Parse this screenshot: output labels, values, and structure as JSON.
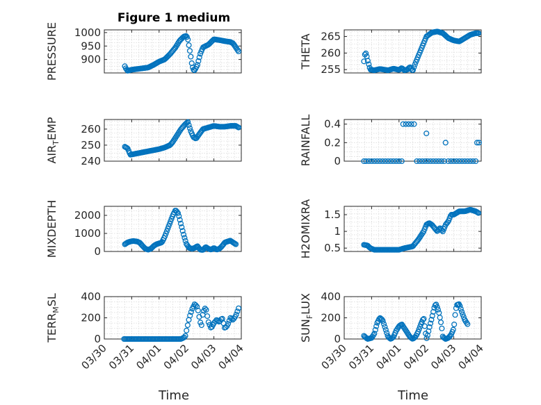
{
  "window": {
    "title": "Figure 1 medium"
  },
  "theme": {
    "marker_color": "#0072BD",
    "axis_color": "#262626",
    "grid_color": "#d9d9d9"
  },
  "x_axis": {
    "label": "Time",
    "ticks": [
      "03/30",
      "03/31",
      "04/01",
      "04/02",
      "04/03",
      "04/04"
    ],
    "tick_values": [
      0,
      1,
      2,
      3,
      4,
      5
    ],
    "unit": "days from 03/30"
  },
  "chart_data": [
    {
      "type": "scatter",
      "name": "pressure",
      "title": "Figure 1 medium",
      "ylabel": "PRESSURE",
      "ylim": [
        850,
        1010
      ],
      "yticks": [
        900,
        950,
        1000
      ],
      "yticklabels": [
        "900",
        "950",
        "1000"
      ],
      "grid": true,
      "anchors": [
        [
          0.75,
          875
        ],
        [
          0.78,
          868
        ],
        [
          0.85,
          858
        ],
        [
          1.0,
          862
        ],
        [
          1.3,
          866
        ],
        [
          1.6,
          870
        ],
        [
          1.8,
          880
        ],
        [
          2.0,
          892
        ],
        [
          2.2,
          900
        ],
        [
          2.4,
          920
        ],
        [
          2.6,
          945
        ],
        [
          2.75,
          970
        ],
        [
          2.9,
          985
        ],
        [
          3.0,
          988
        ],
        [
          3.05,
          975
        ],
        [
          3.1,
          945
        ],
        [
          3.15,
          915
        ],
        [
          3.2,
          880
        ],
        [
          3.25,
          862
        ],
        [
          3.3,
          860
        ],
        [
          3.4,
          880
        ],
        [
          3.5,
          920
        ],
        [
          3.6,
          945
        ],
        [
          3.8,
          955
        ],
        [
          4.0,
          975
        ],
        [
          4.2,
          972
        ],
        [
          4.4,
          968
        ],
        [
          4.6,
          965
        ],
        [
          4.7,
          960
        ],
        [
          4.8,
          945
        ],
        [
          4.9,
          930
        ]
      ],
      "n_points": 120
    },
    {
      "type": "scatter",
      "name": "theta",
      "ylabel": "THETA",
      "ylim": [
        254,
        267
      ],
      "yticks": [
        255,
        260,
        265
      ],
      "yticklabels": [
        "255",
        "260",
        "265"
      ],
      "grid": true,
      "anchors": [
        [
          0.72,
          257.5
        ],
        [
          0.75,
          259.5
        ],
        [
          0.8,
          260
        ],
        [
          0.85,
          258
        ],
        [
          0.95,
          255
        ],
        [
          1.1,
          254.8
        ],
        [
          1.3,
          255.2
        ],
        [
          1.6,
          254.8
        ],
        [
          1.8,
          255.3
        ],
        [
          2.0,
          254.9
        ],
        [
          2.1,
          255.5
        ],
        [
          2.2,
          254.8
        ],
        [
          2.3,
          255
        ],
        [
          2.4,
          255.8
        ],
        [
          2.5,
          254.6
        ],
        [
          2.6,
          257
        ],
        [
          2.7,
          259
        ],
        [
          2.85,
          262
        ],
        [
          3.0,
          265
        ],
        [
          3.2,
          266.2
        ],
        [
          3.4,
          266.5
        ],
        [
          3.6,
          266
        ],
        [
          3.8,
          264.5
        ],
        [
          4.0,
          263.8
        ],
        [
          4.2,
          263.5
        ],
        [
          4.4,
          264.5
        ],
        [
          4.6,
          265.5
        ],
        [
          4.8,
          266
        ],
        [
          4.9,
          266
        ]
      ],
      "n_points": 120
    },
    {
      "type": "scatter",
      "name": "air-temp",
      "ylabel": "AIR_TEMP",
      "ylim": [
        240,
        266
      ],
      "yticks": [
        240,
        250,
        260
      ],
      "yticklabels": [
        "240",
        "250",
        "260"
      ],
      "grid": true,
      "anchors": [
        [
          0.75,
          249
        ],
        [
          0.85,
          248
        ],
        [
          0.95,
          244
        ],
        [
          1.1,
          244.5
        ],
        [
          1.4,
          245.5
        ],
        [
          1.7,
          246.5
        ],
        [
          2.0,
          247.5
        ],
        [
          2.2,
          248.5
        ],
        [
          2.4,
          250
        ],
        [
          2.5,
          252
        ],
        [
          2.65,
          256
        ],
        [
          2.8,
          260
        ],
        [
          2.95,
          263
        ],
        [
          3.05,
          264.5
        ],
        [
          3.15,
          259
        ],
        [
          3.25,
          255
        ],
        [
          3.35,
          254
        ],
        [
          3.45,
          256.5
        ],
        [
          3.6,
          260
        ],
        [
          3.8,
          261
        ],
        [
          4.0,
          262
        ],
        [
          4.2,
          261.5
        ],
        [
          4.4,
          261.5
        ],
        [
          4.6,
          262
        ],
        [
          4.8,
          262
        ],
        [
          4.9,
          261
        ]
      ],
      "n_points": 120
    },
    {
      "type": "scatter",
      "name": "rainfall",
      "ylabel": "RAINFALL",
      "ylim": [
        0,
        0.45
      ],
      "yticks": [
        0,
        0.2,
        0.4
      ],
      "yticklabels": [
        "0",
        "0.2",
        "0.4"
      ],
      "grid": true,
      "points": [
        [
          0.72,
          0
        ],
        [
          0.8,
          0
        ],
        [
          0.9,
          0
        ],
        [
          1.0,
          0
        ],
        [
          1.1,
          0
        ],
        [
          1.2,
          0
        ],
        [
          1.3,
          0
        ],
        [
          1.4,
          0
        ],
        [
          1.5,
          0
        ],
        [
          1.6,
          0
        ],
        [
          1.7,
          0
        ],
        [
          1.8,
          0
        ],
        [
          1.9,
          0
        ],
        [
          2.0,
          0
        ],
        [
          2.1,
          0
        ],
        [
          2.15,
          0.4
        ],
        [
          2.25,
          0.4
        ],
        [
          2.35,
          0.4
        ],
        [
          2.45,
          0.4
        ],
        [
          2.55,
          0.4
        ],
        [
          2.65,
          0
        ],
        [
          2.75,
          0
        ],
        [
          2.85,
          0
        ],
        [
          2.95,
          0
        ],
        [
          3.0,
          0.3
        ],
        [
          3.05,
          0
        ],
        [
          3.15,
          0
        ],
        [
          3.25,
          0
        ],
        [
          3.35,
          0
        ],
        [
          3.45,
          0
        ],
        [
          3.55,
          0
        ],
        [
          3.65,
          0
        ],
        [
          3.7,
          0.2
        ],
        [
          3.8,
          0
        ],
        [
          3.9,
          0
        ],
        [
          4.0,
          0
        ],
        [
          4.1,
          0
        ],
        [
          4.2,
          0
        ],
        [
          4.3,
          0
        ],
        [
          4.4,
          0
        ],
        [
          4.5,
          0
        ],
        [
          4.6,
          0
        ],
        [
          4.7,
          0
        ],
        [
          4.8,
          0
        ],
        [
          4.85,
          0.2
        ],
        [
          4.92,
          0.2
        ]
      ]
    },
    {
      "type": "scatter",
      "name": "mixdepth",
      "ylabel": "MIXDEPTH",
      "ylim": [
        0,
        2500
      ],
      "yticks": [
        0,
        1000,
        2000
      ],
      "yticklabels": [
        "0",
        "1000",
        "2000"
      ],
      "grid": true,
      "anchors": [
        [
          0.75,
          400
        ],
        [
          0.85,
          500
        ],
        [
          0.95,
          550
        ],
        [
          1.05,
          580
        ],
        [
          1.2,
          550
        ],
        [
          1.3,
          480
        ],
        [
          1.4,
          300
        ],
        [
          1.5,
          150
        ],
        [
          1.6,
          100
        ],
        [
          1.7,
          150
        ],
        [
          1.8,
          300
        ],
        [
          1.9,
          400
        ],
        [
          2.0,
          450
        ],
        [
          2.1,
          500
        ],
        [
          2.2,
          800
        ],
        [
          2.3,
          1200
        ],
        [
          2.4,
          1600
        ],
        [
          2.5,
          2000
        ],
        [
          2.6,
          2300
        ],
        [
          2.7,
          2100
        ],
        [
          2.8,
          1500
        ],
        [
          2.9,
          900
        ],
        [
          3.0,
          400
        ],
        [
          3.1,
          200
        ],
        [
          3.2,
          150
        ],
        [
          3.3,
          200
        ],
        [
          3.4,
          300
        ],
        [
          3.5,
          100
        ],
        [
          3.6,
          80
        ],
        [
          3.7,
          250
        ],
        [
          3.8,
          150
        ],
        [
          3.9,
          100
        ],
        [
          4.0,
          200
        ],
        [
          4.1,
          100
        ],
        [
          4.2,
          150
        ],
        [
          4.3,
          300
        ],
        [
          4.4,
          500
        ],
        [
          4.6,
          600
        ],
        [
          4.7,
          500
        ],
        [
          4.8,
          400
        ]
      ],
      "n_points": 120
    },
    {
      "type": "scatter",
      "name": "h2omixra",
      "ylabel": "H2OMIXRA",
      "ylim": [
        0.4,
        1.75
      ],
      "yticks": [
        0.5,
        1,
        1.5
      ],
      "yticklabels": [
        "0.5",
        "1",
        "1.5"
      ],
      "grid": true,
      "anchors": [
        [
          0.72,
          0.6
        ],
        [
          0.85,
          0.58
        ],
        [
          0.95,
          0.5
        ],
        [
          1.1,
          0.45
        ],
        [
          1.5,
          0.45
        ],
        [
          2.0,
          0.45
        ],
        [
          2.2,
          0.5
        ],
        [
          2.5,
          0.55
        ],
        [
          2.7,
          0.75
        ],
        [
          2.9,
          1.0
        ],
        [
          3.0,
          1.2
        ],
        [
          3.1,
          1.25
        ],
        [
          3.2,
          1.2
        ],
        [
          3.3,
          1.1
        ],
        [
          3.4,
          1.0
        ],
        [
          3.5,
          1.1
        ],
        [
          3.6,
          1.0
        ],
        [
          3.7,
          1.2
        ],
        [
          3.8,
          1.3
        ],
        [
          3.9,
          1.5
        ],
        [
          4.0,
          1.5
        ],
        [
          4.2,
          1.6
        ],
        [
          4.4,
          1.6
        ],
        [
          4.6,
          1.65
        ],
        [
          4.8,
          1.6
        ],
        [
          4.9,
          1.55
        ]
      ],
      "n_points": 120
    },
    {
      "type": "scatter",
      "name": "terr-msl",
      "ylabel": "TERR_MSL",
      "ylim": [
        0,
        400
      ],
      "yticks": [
        0,
        200,
        400
      ],
      "yticklabels": [
        "0",
        "200",
        "400"
      ],
      "grid": true,
      "anchors": [
        [
          0.72,
          0
        ],
        [
          1.0,
          0
        ],
        [
          1.5,
          0
        ],
        [
          2.0,
          0
        ],
        [
          2.5,
          0
        ],
        [
          2.8,
          0
        ],
        [
          2.95,
          20
        ],
        [
          3.0,
          80
        ],
        [
          3.1,
          200
        ],
        [
          3.2,
          280
        ],
        [
          3.3,
          330
        ],
        [
          3.4,
          300
        ],
        [
          3.5,
          160
        ],
        [
          3.55,
          130
        ],
        [
          3.6,
          250
        ],
        [
          3.7,
          300
        ],
        [
          3.8,
          160
        ],
        [
          3.9,
          100
        ],
        [
          4.0,
          150
        ],
        [
          4.1,
          180
        ],
        [
          4.2,
          160
        ],
        [
          4.3,
          200
        ],
        [
          4.4,
          100
        ],
        [
          4.5,
          130
        ],
        [
          4.6,
          200
        ],
        [
          4.7,
          180
        ],
        [
          4.8,
          220
        ],
        [
          4.9,
          290
        ]
      ],
      "n_points": 100
    },
    {
      "type": "scatter",
      "name": "sun-flux",
      "ylabel": "SUN_FLUX",
      "ylim": [
        0,
        400
      ],
      "yticks": [
        0,
        200,
        400
      ],
      "yticklabels": [
        "0",
        "200",
        "400"
      ],
      "grid": true,
      "anchors": [
        [
          0.72,
          30
        ],
        [
          0.85,
          0
        ],
        [
          1.0,
          10
        ],
        [
          1.1,
          50
        ],
        [
          1.2,
          150
        ],
        [
          1.3,
          200
        ],
        [
          1.4,
          180
        ],
        [
          1.5,
          100
        ],
        [
          1.6,
          20
        ],
        [
          1.7,
          0
        ],
        [
          1.8,
          20
        ],
        [
          1.9,
          80
        ],
        [
          2.0,
          120
        ],
        [
          2.1,
          140
        ],
        [
          2.2,
          100
        ],
        [
          2.3,
          60
        ],
        [
          2.4,
          20
        ],
        [
          2.5,
          0
        ],
        [
          2.6,
          20
        ],
        [
          2.7,
          70
        ],
        [
          2.8,
          140
        ],
        [
          2.9,
          200
        ],
        [
          3.0,
          0
        ],
        [
          3.05,
          40
        ],
        [
          3.1,
          100
        ],
        [
          3.2,
          200
        ],
        [
          3.3,
          310
        ],
        [
          3.35,
          330
        ],
        [
          3.45,
          260
        ],
        [
          3.55,
          130
        ],
        [
          3.6,
          20
        ],
        [
          3.7,
          0
        ],
        [
          3.8,
          10
        ],
        [
          3.9,
          40
        ],
        [
          4.0,
          100
        ],
        [
          4.05,
          230
        ],
        [
          4.1,
          320
        ],
        [
          4.2,
          330
        ],
        [
          4.3,
          250
        ],
        [
          4.4,
          180
        ],
        [
          4.5,
          140
        ]
      ],
      "n_points": 110
    }
  ]
}
